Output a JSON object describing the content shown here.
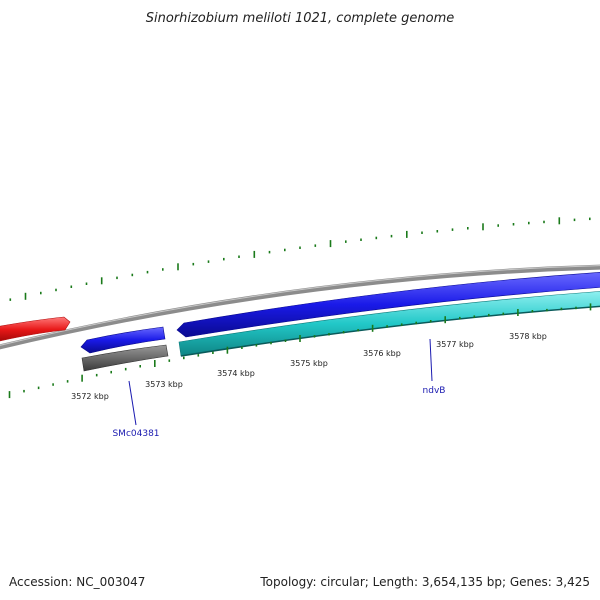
{
  "title": "Sinorhizobium meliloti 1021, complete genome",
  "footer": {
    "accession": "Accession: NC_003047",
    "summary": "Topology: circular; Length: 3,654,135 bp; Genes: 3,425"
  },
  "ticks": [
    "3572 kbp",
    "3573 kbp",
    "3574 kbp",
    "3575 kbp",
    "3576 kbp",
    "3577 kbp",
    "3578 kbp"
  ],
  "genes": [
    "SMc04381",
    "ndvB"
  ],
  "colors": {
    "backbone": "#8c8c8c",
    "red_feature": "#e81818",
    "blue_feature": "#1a1ae0",
    "gray_feature": "#6a6a6a",
    "cyan_feature": "#22c8c8",
    "tick_marks": "#1a7a1a",
    "gene_label": "#1a1ab0"
  }
}
